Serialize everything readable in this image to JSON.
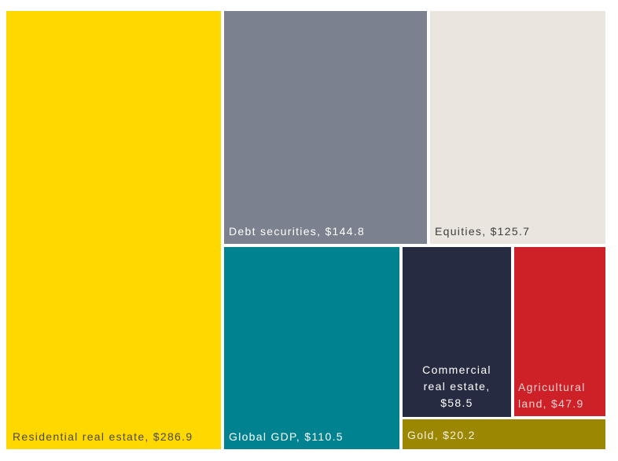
{
  "chart_data": {
    "type": "treemap",
    "title": "",
    "background_color": "#FFFFFF",
    "items": [
      {
        "name": "Residential real estate",
        "value": 286.9,
        "label": "Residential real estate, $286.9",
        "color": "#FFD800",
        "text_color": "#4B4B40"
      },
      {
        "name": "Debt securities",
        "value": 144.8,
        "label": "Debt securities, $144.8",
        "color": "#7B818E",
        "text_color": "#FFFFFF"
      },
      {
        "name": "Equities",
        "value": 125.7,
        "label": "Equities, $125.7",
        "color": "#EAE5DF",
        "text_color": "#3F3F3F"
      },
      {
        "name": "Global GDP",
        "value": 110.5,
        "label": "Global GDP, $110.5",
        "color": "#008291",
        "text_color": "#FFFFFF"
      },
      {
        "name": "Commercial real estate",
        "value": 58.5,
        "label": "Commercial real estate, $58.5",
        "color": "#262B42",
        "text_color": "#FFFFFF"
      },
      {
        "name": "Agricultural land",
        "value": 47.9,
        "label": "Agricultural land, $47.9",
        "color": "#CE2027",
        "text_color": "#F2D2D2"
      },
      {
        "name": "Gold",
        "value": 20.2,
        "label": "Gold, $20.2",
        "color": "#9B8702",
        "text_color": "#F5F1DE"
      }
    ]
  }
}
